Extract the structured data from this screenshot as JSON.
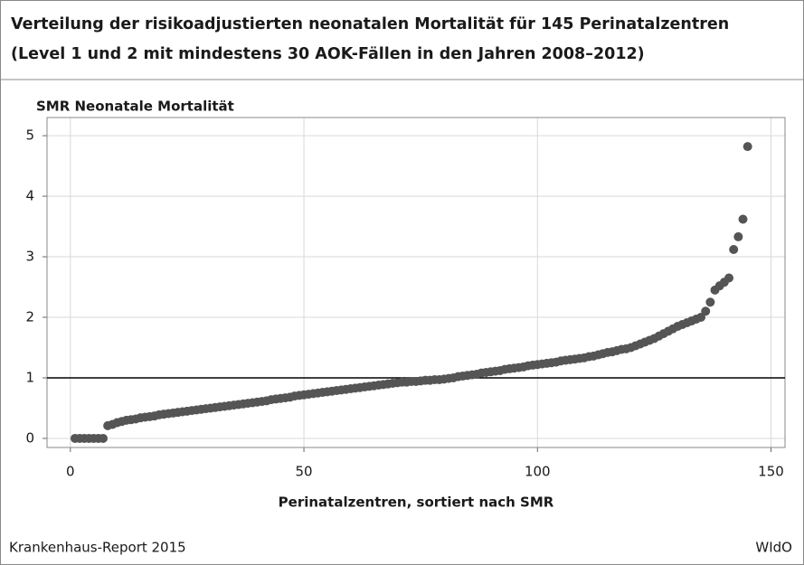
{
  "chart_data": {
    "type": "scatter",
    "title_lines": [
      "Verteilung der risikoadjustierten neonatalen Mortalität für 145 Perinatalzentren",
      "(Level 1 und 2 mit mindestens 30 AOK-Fällen in den Jahren 2008–2012)"
    ],
    "y_label": "SMR Neonatale Mortalität",
    "x_label": "Perinatalzentren, sortiert nach SMR",
    "source": "Krankenhaus-Report 2015",
    "publisher": "WIdO",
    "color": "#555555",
    "grid": true,
    "reference_line": 1,
    "xlim": [
      -5,
      153
    ],
    "ylim": [
      -0.15,
      5.3
    ],
    "xticks": [
      0,
      50,
      100,
      150
    ],
    "yticks": [
      0,
      1,
      2,
      3,
      4,
      5
    ],
    "x": [
      1,
      2,
      3,
      4,
      5,
      6,
      7,
      8,
      9,
      10,
      11,
      12,
      13,
      14,
      15,
      16,
      17,
      18,
      19,
      20,
      21,
      22,
      23,
      24,
      25,
      26,
      27,
      28,
      29,
      30,
      31,
      32,
      33,
      34,
      35,
      36,
      37,
      38,
      39,
      40,
      41,
      42,
      43,
      44,
      45,
      46,
      47,
      48,
      49,
      50,
      51,
      52,
      53,
      54,
      55,
      56,
      57,
      58,
      59,
      60,
      61,
      62,
      63,
      64,
      65,
      66,
      67,
      68,
      69,
      70,
      71,
      72,
      73,
      74,
      75,
      76,
      77,
      78,
      79,
      80,
      81,
      82,
      83,
      84,
      85,
      86,
      87,
      88,
      89,
      90,
      91,
      92,
      93,
      94,
      95,
      96,
      97,
      98,
      99,
      100,
      101,
      102,
      103,
      104,
      105,
      106,
      107,
      108,
      109,
      110,
      111,
      112,
      113,
      114,
      115,
      116,
      117,
      118,
      119,
      120,
      121,
      122,
      123,
      124,
      125,
      126,
      127,
      128,
      129,
      130,
      131,
      132,
      133,
      134,
      135,
      136,
      137,
      138,
      139,
      140,
      141,
      142,
      143,
      144,
      145
    ],
    "values": [
      0,
      0,
      0,
      0,
      0,
      0,
      0,
      0.21,
      0.23,
      0.26,
      0.28,
      0.3,
      0.31,
      0.32,
      0.34,
      0.35,
      0.36,
      0.37,
      0.39,
      0.4,
      0.41,
      0.42,
      0.43,
      0.44,
      0.45,
      0.46,
      0.47,
      0.48,
      0.49,
      0.5,
      0.51,
      0.52,
      0.53,
      0.54,
      0.55,
      0.56,
      0.57,
      0.58,
      0.59,
      0.6,
      0.61,
      0.62,
      0.64,
      0.65,
      0.66,
      0.67,
      0.68,
      0.7,
      0.71,
      0.72,
      0.73,
      0.74,
      0.75,
      0.76,
      0.77,
      0.78,
      0.79,
      0.8,
      0.81,
      0.82,
      0.83,
      0.84,
      0.85,
      0.86,
      0.87,
      0.88,
      0.89,
      0.9,
      0.91,
      0.92,
      0.93,
      0.93,
      0.94,
      0.94,
      0.95,
      0.96,
      0.96,
      0.97,
      0.97,
      0.98,
      0.99,
      1.0,
      1.02,
      1.03,
      1.04,
      1.05,
      1.06,
      1.08,
      1.09,
      1.1,
      1.11,
      1.12,
      1.14,
      1.15,
      1.16,
      1.17,
      1.18,
      1.2,
      1.21,
      1.22,
      1.23,
      1.24,
      1.25,
      1.26,
      1.28,
      1.29,
      1.3,
      1.31,
      1.32,
      1.33,
      1.35,
      1.36,
      1.38,
      1.4,
      1.42,
      1.43,
      1.45,
      1.47,
      1.48,
      1.5,
      1.53,
      1.56,
      1.59,
      1.62,
      1.65,
      1.69,
      1.73,
      1.77,
      1.81,
      1.85,
      1.88,
      1.91,
      1.94,
      1.97,
      2.0,
      2.1,
      2.25,
      2.45,
      2.52,
      2.58,
      2.65,
      3.12,
      3.33,
      3.62,
      4.82
    ]
  }
}
